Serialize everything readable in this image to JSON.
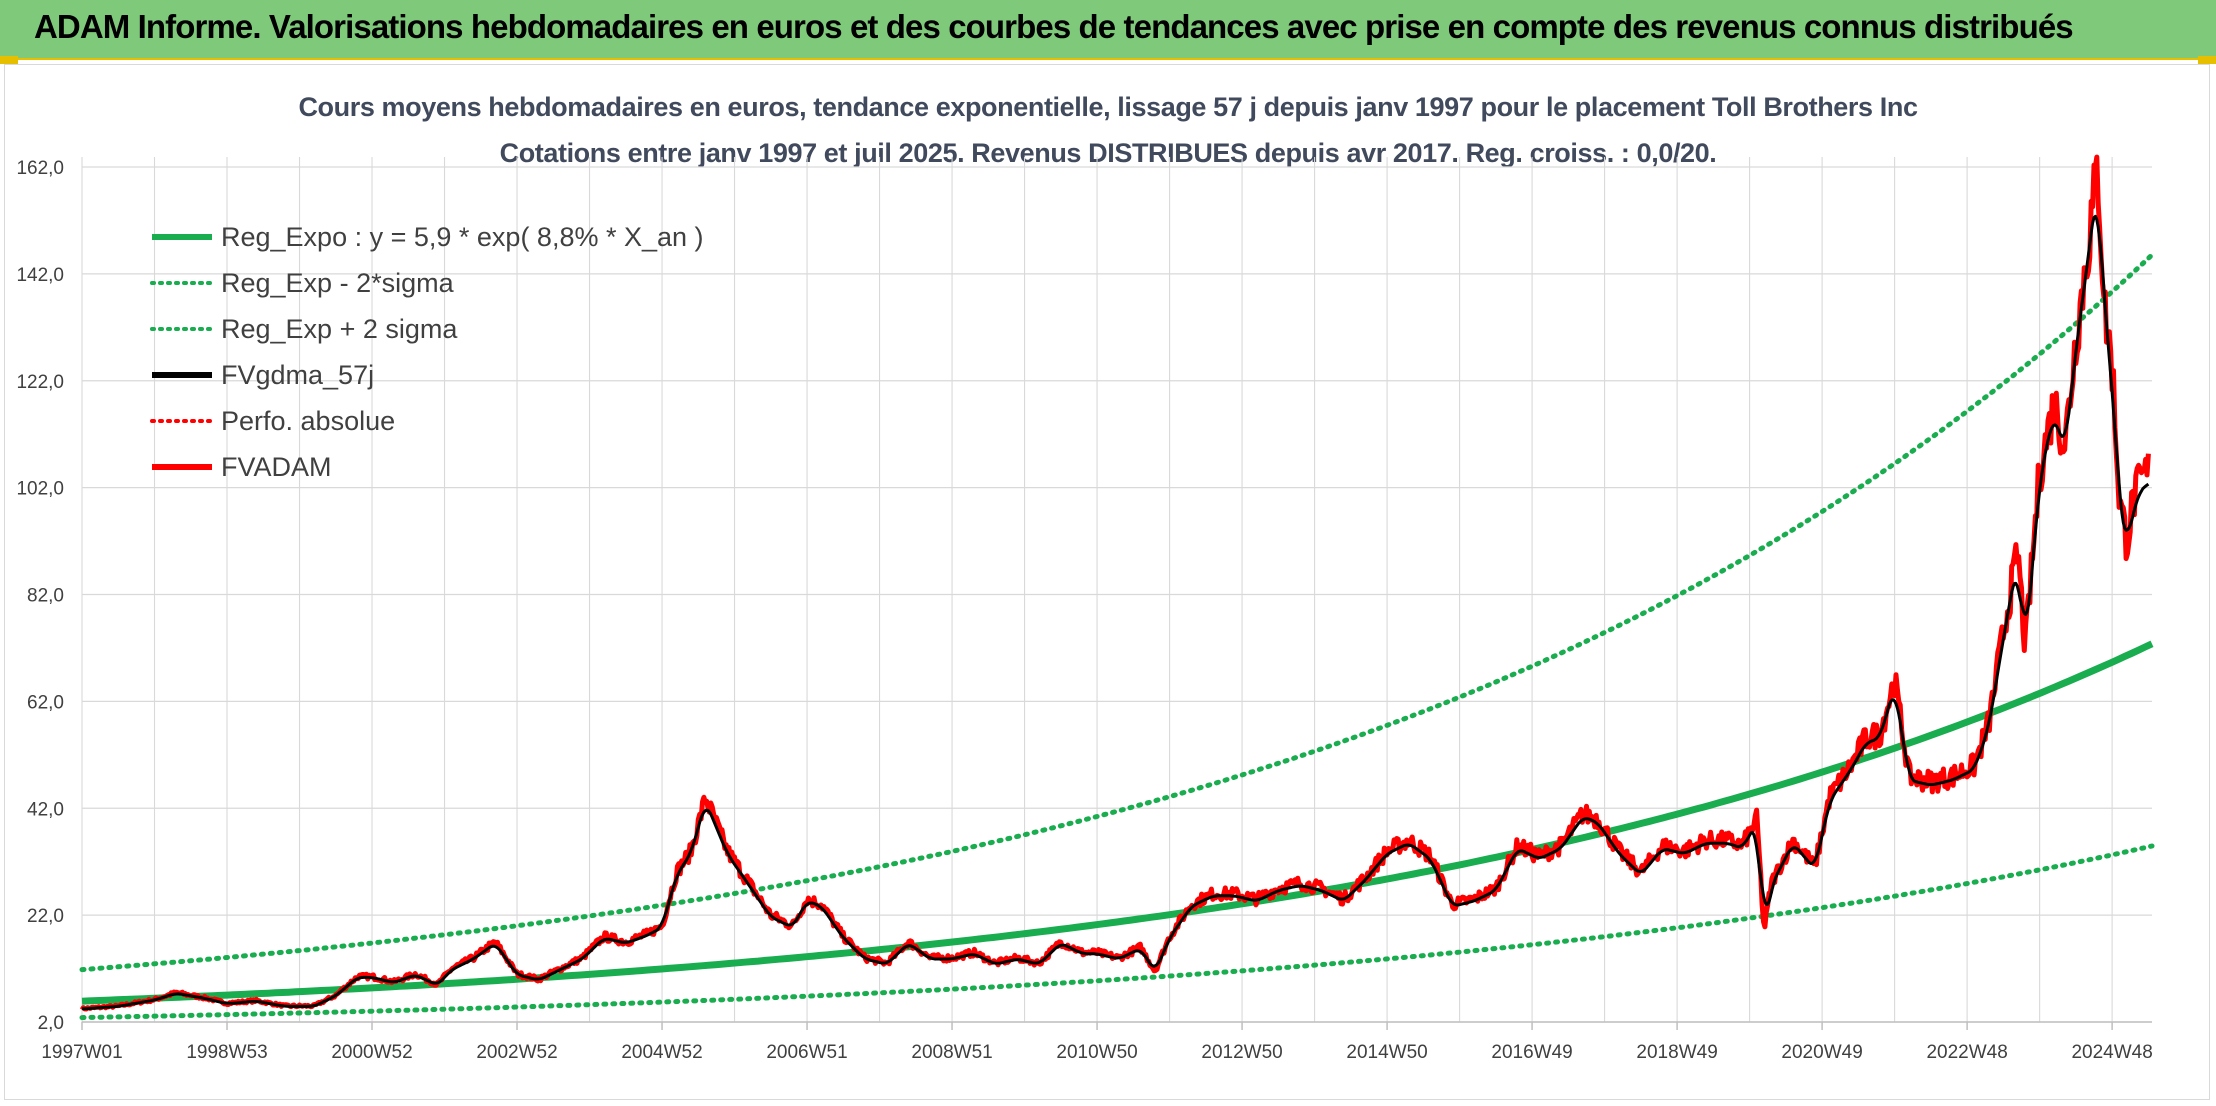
{
  "header": {
    "title": "ADAM Informe. Valorisations hebdomadaires en euros et des courbes de tendances avec prise en compte des revenus connus distribués"
  },
  "colors": {
    "banner": "#7fc97a",
    "trend": "#19ad4f",
    "smooth": "#000000",
    "adam": "#ff0000",
    "grid": "#d9d9d9"
  },
  "chart_data": {
    "type": "line",
    "title": "Cours moyens hebdomadaires en euros, tendance exponentielle, lissage 57 j depuis janv 1997 pour le placement Toll Brothers Inc",
    "subtitle": "Cotations entre janv 1997 et juil 2025. Revenus DISTRIBUES depuis avr 2017. Reg. croiss. : 0,0/20.",
    "xlabel": "",
    "ylabel": "",
    "ylim": [
      2.0,
      162.0
    ],
    "yticks": [
      "2,0",
      "22,0",
      "42,0",
      "62,0",
      "82,0",
      "102,0",
      "122,0",
      "142,0",
      "162,0"
    ],
    "xlim": [
      1997.0,
      2025.55
    ],
    "xticks": [
      {
        "label": "1997W01",
        "x": 1997.0
      },
      {
        "label": "1998W53",
        "x": 1999.0
      },
      {
        "label": "2000W52",
        "x": 2001.0
      },
      {
        "label": "2002W52",
        "x": 2003.0
      },
      {
        "label": "2004W52",
        "x": 2005.0
      },
      {
        "label": "2006W51",
        "x": 2007.0
      },
      {
        "label": "2008W51",
        "x": 2009.0
      },
      {
        "label": "2010W50",
        "x": 2011.0
      },
      {
        "label": "2012W50",
        "x": 2013.0
      },
      {
        "label": "2014W50",
        "x": 2015.0
      },
      {
        "label": "2016W49",
        "x": 2017.0
      },
      {
        "label": "2018W49",
        "x": 2019.0
      },
      {
        "label": "2020W49",
        "x": 2021.0
      },
      {
        "label": "2022W48",
        "x": 2023.0
      },
      {
        "label": "2024W48",
        "x": 2025.0
      }
    ],
    "grid": true,
    "legend_position": "top-left",
    "trend": {
      "a": 5.9,
      "rate": 0.088,
      "sigma_low": 0.48,
      "sigma_high": 2.0
    },
    "series": [
      {
        "name": "Reg_Expo : y = 5,9 * exp( 8,8% *  X_an )",
        "style": "solid",
        "color": "#19ad4f"
      },
      {
        "name": "Reg_Exp - 2*sigma",
        "style": "dotted",
        "color": "#19ad4f"
      },
      {
        "name": "Reg_Exp + 2 sigma",
        "style": "dotted",
        "color": "#19ad4f"
      },
      {
        "name": "FVgdma_57j",
        "style": "solid",
        "color": "#000000"
      },
      {
        "name": "Perfo. absolue",
        "style": "dotted",
        "color": "#ff0000"
      },
      {
        "name": "FVADAM",
        "style": "solid",
        "color": "#ff0000",
        "x": [
          1997.0,
          1997.5,
          1998.0,
          1998.3,
          1998.7,
          1999.0,
          1999.4,
          1999.8,
          2000.2,
          2000.5,
          2000.8,
          2001.0,
          2001.3,
          2001.6,
          2001.9,
          2002.1,
          2002.4,
          2002.7,
          2003.0,
          2003.3,
          2003.6,
          2003.9,
          2004.2,
          2004.5,
          2004.8,
          2005.0,
          2005.2,
          2005.4,
          2005.6,
          2005.9,
          2006.2,
          2006.5,
          2006.8,
          2007.0,
          2007.2,
          2007.5,
          2007.8,
          2008.1,
          2008.4,
          2008.7,
          2009.0,
          2009.3,
          2009.6,
          2009.9,
          2010.2,
          2010.5,
          2010.8,
          2011.0,
          2011.3,
          2011.6,
          2011.8,
          2012.0,
          2012.3,
          2012.6,
          2012.9,
          2013.2,
          2013.5,
          2013.8,
          2014.1,
          2014.4,
          2014.7,
          2015.0,
          2015.3,
          2015.6,
          2015.9,
          2016.2,
          2016.5,
          2016.8,
          2017.1,
          2017.4,
          2017.7,
          2017.9,
          2018.2,
          2018.5,
          2018.8,
          2019.1,
          2019.4,
          2019.7,
          2019.9,
          2020.1,
          2020.2,
          2020.3,
          2020.6,
          2020.9,
          2021.1,
          2021.4,
          2021.6,
          2021.8,
          2022.0,
          2022.2,
          2022.5,
          2022.8,
          2023.1,
          2023.3,
          2023.5,
          2023.7,
          2023.8,
          2024.0,
          2024.2,
          2024.35,
          2024.5,
          2024.65,
          2024.8,
          2024.9,
          2025.0,
          2025.1,
          2025.2,
          2025.3,
          2025.4,
          2025.5
        ],
        "values": [
          4.5,
          5.0,
          6.2,
          7.5,
          6.5,
          5.5,
          6.0,
          5.0,
          5.0,
          7.0,
          10.5,
          10.5,
          9.5,
          11.0,
          9.0,
          12.0,
          14.0,
          17.0,
          11.0,
          10.0,
          12.0,
          14.0,
          18.0,
          17.0,
          18.5,
          20.0,
          30.0,
          34.0,
          44.0,
          34.0,
          28.0,
          22.0,
          20.0,
          25.0,
          24.0,
          18.0,
          14.0,
          13.0,
          17.0,
          14.0,
          14.0,
          15.0,
          13.0,
          14.0,
          13.0,
          17.0,
          15.0,
          15.0,
          14.0,
          16.0,
          11.5,
          18.0,
          24.0,
          26.0,
          26.0,
          25.0,
          27.0,
          28.0,
          27.0,
          25.0,
          29.0,
          34.0,
          36.0,
          33.0,
          24.0,
          25.0,
          27.0,
          35.0,
          33.0,
          35.0,
          41.0,
          40.0,
          34.0,
          30.0,
          35.0,
          34.0,
          36.0,
          36.0,
          35.0,
          40.0,
          19.0,
          28.0,
          36.0,
          31.0,
          44.0,
          50.0,
          55.0,
          56.0,
          66.0,
          48.0,
          47.0,
          48.0,
          50.0,
          58.0,
          75.0,
          90.0,
          72.0,
          105.0,
          118.0,
          110.0,
          130.0,
          145.0,
          162.0,
          135.0,
          125.0,
          100.0,
          92.0,
          100.0,
          103.0,
          105.0
        ]
      }
    ]
  }
}
